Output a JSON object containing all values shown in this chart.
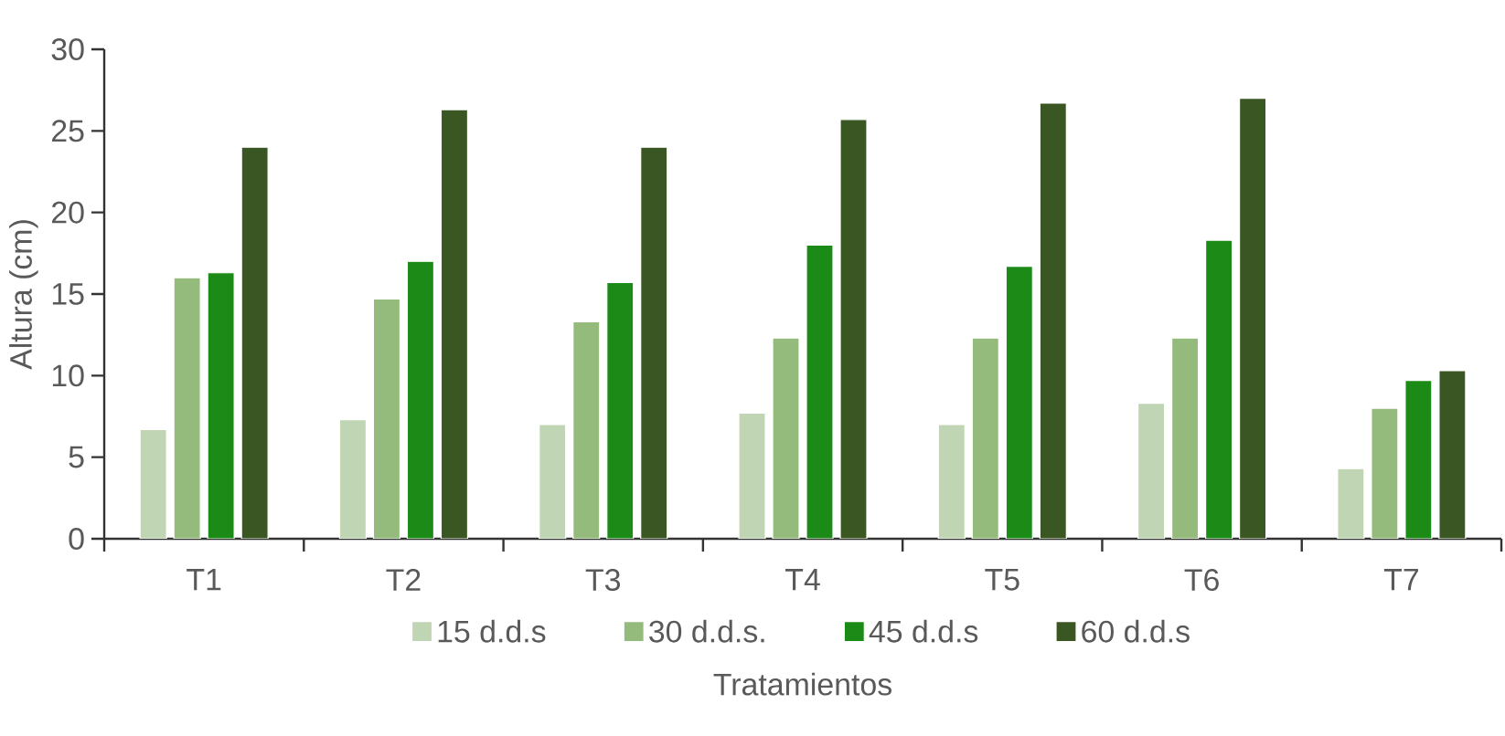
{
  "chart_data": {
    "type": "bar",
    "xlabel": "Tratamientos",
    "ylabel": "Altura (cm)",
    "categories": [
      "T1",
      "T2",
      "T3",
      "T4",
      "T5",
      "T6",
      "T7"
    ],
    "series": [
      {
        "name": "15 d.d.s",
        "color": "#c0d5b3",
        "values": [
          6.7,
          7.3,
          7.0,
          7.7,
          7.0,
          8.3,
          4.3
        ]
      },
      {
        "name": "30 d.d.s.",
        "color": "#95bb7c",
        "values": [
          16.0,
          14.7,
          13.3,
          12.3,
          12.3,
          12.3,
          8.0
        ]
      },
      {
        "name": "45 d.d.s",
        "color": "#1c8a17",
        "values": [
          16.3,
          17.0,
          15.7,
          18.0,
          16.7,
          18.3,
          9.7
        ]
      },
      {
        "name": "60 d.d.s",
        "color": "#3a5723",
        "values": [
          24.0,
          26.3,
          24.0,
          25.7,
          26.7,
          27.0,
          10.3
        ]
      }
    ],
    "ylim": [
      0,
      30
    ],
    "yticks": [
      0,
      5,
      10,
      15,
      20,
      25,
      30
    ],
    "grid": false,
    "legend": "bottom"
  }
}
